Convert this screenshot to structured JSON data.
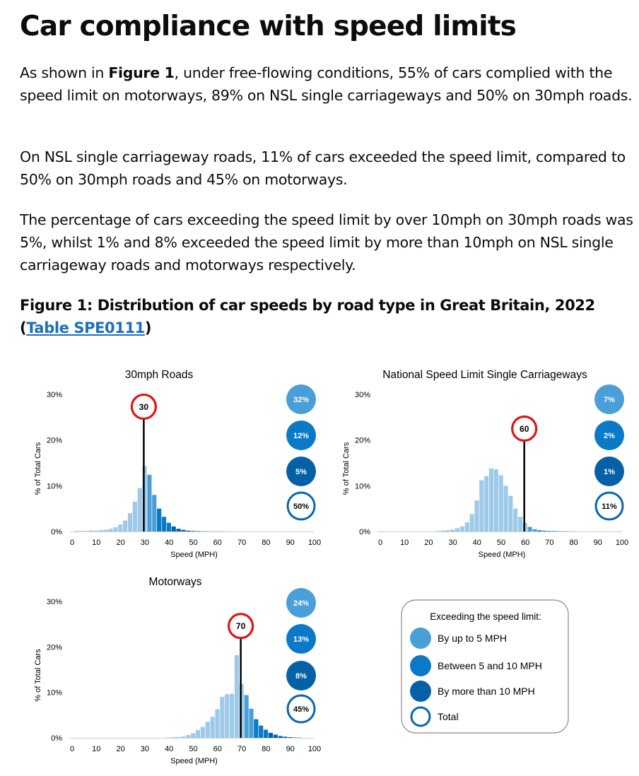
{
  "page": {
    "title": "Car compliance with speed limits",
    "p1_before": "As shown in ",
    "p1_bold": "Figure 1",
    "p1_after": ", under free-flowing conditions, 55% of cars complied with the speed limit on motorways, 89% on NSL single carriageways and 50% on 30mph roads.",
    "p2": "On NSL single carriageway roads, 11% of cars exceeded the speed limit, compared to 50% on 30mph roads and 45% on motorways.",
    "p3": "The percentage of cars exceeding the speed limit by over 10mph on 30mph roads was 5%, whilst 1% and 8% exceeded the speed limit by more than 10mph on NSL single carriageway roads and motorways respectively.",
    "caption_before": "Figure 1: Distribution of car speeds by road type in Great Britain, 2022 (",
    "caption_link": "Table SPE0111",
    "caption_after": ")"
  },
  "colors": {
    "compliant": "#9ecae9",
    "up_to_5": "#4a9fd8",
    "between_5_10": "#0a7ac8",
    "over_10": "#0560a6",
    "total_ring": "#0a66b0",
    "limit_sign": "#e01414",
    "text": "#0b0c0c",
    "link": "#1d70b8"
  },
  "chart_data": [
    {
      "type": "bar",
      "title": "30mph Roads",
      "xlabel": "Speed (MPH)",
      "ylabel": "% of Total Cars",
      "xlim": [
        0,
        100
      ],
      "ylim": [
        0,
        30
      ],
      "xticks": [
        "0",
        "10",
        "20",
        "30",
        "40",
        "50",
        "60",
        "70",
        "80",
        "90",
        "100"
      ],
      "yticks": [
        "0%",
        "10%",
        "20%",
        "30%"
      ],
      "speed_limit": 30,
      "limit_label": "30",
      "bins": [
        2,
        4,
        6,
        8,
        10,
        12,
        14,
        16,
        18,
        20,
        22,
        24,
        26,
        28,
        30,
        32,
        34,
        36,
        38,
        40,
        42,
        44,
        46,
        48,
        50,
        52,
        54,
        56,
        58,
        60,
        62,
        64
      ],
      "values": [
        0.1,
        0.1,
        0.1,
        0.2,
        0.2,
        0.3,
        0.4,
        0.6,
        0.9,
        1.5,
        2.4,
        4.0,
        6.5,
        9.5,
        14.3,
        12.4,
        8.0,
        5.0,
        3.2,
        1.9,
        1.1,
        0.6,
        0.35,
        0.2,
        0.12,
        0.08,
        0.05,
        0.04,
        0.03,
        0.02,
        0.02,
        0.01
      ],
      "exceed_by_up_to_5": "32%",
      "exceed_by_5_to_10": "12%",
      "exceed_by_more_than_10": "5%",
      "exceed_total": "50%"
    },
    {
      "type": "bar",
      "title": "National Speed Limit Single Carriageways",
      "xlabel": "Speed (MPH)",
      "ylabel": "% of Total Cars",
      "xlim": [
        0,
        100
      ],
      "ylim": [
        0,
        30
      ],
      "xticks": [
        "0",
        "10",
        "20",
        "30",
        "40",
        "50",
        "60",
        "70",
        "80",
        "90",
        "100"
      ],
      "yticks": [
        "0%",
        "10%",
        "20%",
        "30%"
      ],
      "speed_limit": 60,
      "limit_label": "60",
      "bins": [
        24,
        26,
        28,
        30,
        32,
        34,
        36,
        38,
        40,
        42,
        44,
        46,
        48,
        50,
        52,
        54,
        56,
        58,
        60,
        62,
        64,
        66,
        68,
        70,
        72,
        74,
        76,
        78,
        80
      ],
      "values": [
        0.1,
        0.2,
        0.3,
        0.4,
        0.7,
        1.1,
        2.0,
        3.8,
        6.8,
        11.2,
        12.1,
        13.8,
        13.6,
        12.3,
        10.0,
        7.8,
        5.0,
        3.2,
        1.9,
        1.0,
        0.5,
        0.25,
        0.15,
        0.1,
        0.08,
        0.05,
        0.04,
        0.03,
        0.02
      ],
      "exceed_by_up_to_5": "7%",
      "exceed_by_5_to_10": "2%",
      "exceed_by_more_than_10": "1%",
      "exceed_total": "11%"
    },
    {
      "type": "bar",
      "title": "Motorways",
      "xlabel": "Speed (MPH)",
      "ylabel": "% of Total Cars",
      "xlim": [
        0,
        100
      ],
      "ylim": [
        0,
        30
      ],
      "xticks": [
        "0",
        "10",
        "20",
        "30",
        "40",
        "50",
        "60",
        "70",
        "80",
        "90",
        "100"
      ],
      "yticks": [
        "0%",
        "10%",
        "20%",
        "30%"
      ],
      "speed_limit": 70,
      "limit_label": "70",
      "bins": [
        40,
        42,
        44,
        46,
        48,
        50,
        52,
        54,
        56,
        58,
        60,
        62,
        64,
        66,
        68,
        70,
        72,
        74,
        76,
        78,
        80,
        82,
        84,
        86,
        88,
        90,
        92,
        94
      ],
      "values": [
        0.1,
        0.15,
        0.2,
        0.3,
        0.6,
        1.0,
        1.7,
        2.4,
        3.5,
        4.6,
        6.3,
        9.0,
        9.6,
        9.7,
        18.2,
        11.9,
        9.4,
        6.4,
        4.1,
        2.7,
        1.8,
        1.1,
        0.7,
        0.4,
        0.25,
        0.15,
        0.08,
        0.05
      ],
      "exceed_by_up_to_5": "24%",
      "exceed_by_5_to_10": "13%",
      "exceed_by_more_than_10": "8%",
      "exceed_total": "45%"
    }
  ],
  "legend": {
    "title": "Exceeding the speed limit:",
    "items": [
      {
        "label": "By up to 5 MPH",
        "key": "up_to_5"
      },
      {
        "label": "Between 5 and 10 MPH",
        "key": "between_5_10"
      },
      {
        "label": "By more than 10 MPH",
        "key": "over_10"
      },
      {
        "label": "Total",
        "key": "total"
      }
    ]
  }
}
